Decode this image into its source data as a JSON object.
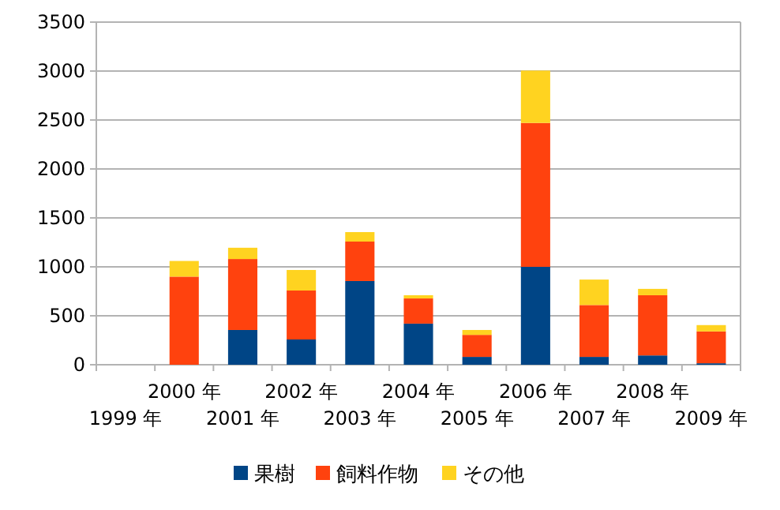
{
  "chart_data": {
    "type": "bar",
    "stacked": true,
    "categories": [
      "1999 年",
      "2000 年",
      "2001 年",
      "2002 年",
      "2003 年",
      "2004 年",
      "2005 年",
      "2006 年",
      "2007 年",
      "2008 年",
      "2009 年"
    ],
    "series": [
      {
        "name": "果樹",
        "color": "#004586",
        "values": [
          0,
          0,
          355,
          258,
          855,
          420,
          80,
          1000,
          80,
          95,
          15
        ]
      },
      {
        "name": "飼料作物",
        "color": "#ff420e",
        "values": [
          0,
          900,
          725,
          500,
          403,
          257,
          225,
          1470,
          530,
          615,
          325
        ]
      },
      {
        "name": "その他",
        "color": "#ffd320",
        "values": [
          0,
          160,
          115,
          210,
          97,
          33,
          50,
          535,
          260,
          65,
          65
        ]
      }
    ],
    "ylim": [
      0,
      3500
    ],
    "yticks": [
      0,
      500,
      1000,
      1500,
      2000,
      2500,
      3000,
      3500
    ],
    "grid": "y",
    "legend": "bottom"
  }
}
